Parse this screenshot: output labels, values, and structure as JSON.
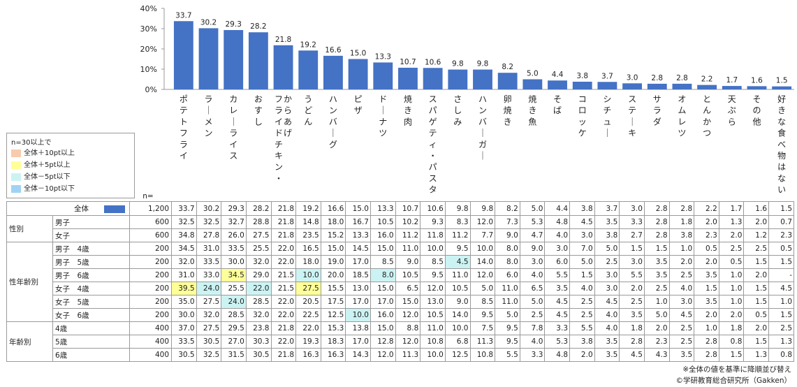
{
  "chart_data": {
    "type": "bar",
    "categories": [
      "ポテトフライ",
      "ラーメン",
      "カレーライス",
      "おすし",
      "フライドチキン・からあげ",
      "うどん",
      "ハンバーグ",
      "ピザ",
      "ドーナツ",
      "焼き肉",
      "スパゲティ・パスタ",
      "さしみ",
      "ハンバーガー",
      "卵焼き",
      "焼き魚",
      "そば",
      "コロッケ",
      "シチュー",
      "ステーキ",
      "サラダ",
      "オムレツ",
      "とんかつ",
      "天ぷら",
      "その他",
      "好きな食べ物はない"
    ],
    "category_lines": [
      [
        "ポテトフライ"
      ],
      [
        "ラーメン"
      ],
      [
        "カレーライス"
      ],
      [
        "おすし"
      ],
      [
        "フライドチキン・",
        "からあげ"
      ],
      [
        "うどん"
      ],
      [
        "ハンバーグ"
      ],
      [
        "ピザ"
      ],
      [
        "ドーナツ"
      ],
      [
        "焼き肉"
      ],
      [
        "スパゲティ・パスタ"
      ],
      [
        "さしみ"
      ],
      [
        "ハンバーガー"
      ],
      [
        "卵焼き"
      ],
      [
        "焼き魚"
      ],
      [
        "そば"
      ],
      [
        "コロッケ"
      ],
      [
        "シチュー"
      ],
      [
        "ステーキ"
      ],
      [
        "サラダ"
      ],
      [
        "オムレツ"
      ],
      [
        "とんかつ"
      ],
      [
        "天ぷら"
      ],
      [
        "その他"
      ],
      [
        "好きな食べ物はない"
      ]
    ],
    "values": [
      33.7,
      30.2,
      29.3,
      28.2,
      21.8,
      19.2,
      16.6,
      15.0,
      13.3,
      10.7,
      10.6,
      9.8,
      9.8,
      8.2,
      5.0,
      4.4,
      3.8,
      3.7,
      3.0,
      2.8,
      2.8,
      2.2,
      1.7,
      1.6,
      1.5
    ],
    "value_labels": [
      "33.7",
      "30.2",
      "29.3",
      "28.2",
      "21.8",
      "19.2",
      "16.6",
      "15.0",
      "13.3",
      "10.7",
      "10.6",
      "9.8",
      "9.8",
      "8.2",
      "5.0",
      "4.4",
      "3.8",
      "3.7",
      "3.0",
      "2.8",
      "2.8",
      "2.2",
      "1.7",
      "1.6",
      "1.5"
    ],
    "ylim": [
      0,
      40
    ],
    "y_ticks": [
      "0%",
      "10%",
      "20%",
      "30%",
      "40%"
    ],
    "bar_color": "#4472c4",
    "grid": false,
    "legend_position": "left"
  },
  "legend": {
    "title": "n=30以上で",
    "items": [
      {
        "label": "全体＋10pt以上",
        "color": "#f8cbad",
        "cls": "hl-p10"
      },
      {
        "label": "全体＋5pt以上",
        "color": "#ffff99",
        "cls": "hl-p5"
      },
      {
        "label": "全体－5pt以下",
        "color": "#ccf3f3",
        "cls": "hl-m5"
      },
      {
        "label": "全体－10pt以下",
        "color": "#9fd3f4",
        "cls": "hl-m10"
      }
    ]
  },
  "table": {
    "n_header": "n=",
    "rows": [
      {
        "group": "",
        "sub": "全体",
        "n": "1,200",
        "total": true,
        "values": [
          "33.7",
          "30.2",
          "29.3",
          "28.2",
          "21.8",
          "19.2",
          "16.6",
          "15.0",
          "13.3",
          "10.7",
          "10.6",
          "9.8",
          "9.8",
          "8.2",
          "5.0",
          "4.4",
          "3.8",
          "3.7",
          "3.0",
          "2.8",
          "2.8",
          "2.2",
          "1.7",
          "1.6",
          "1.5"
        ]
      },
      {
        "group": "性別",
        "span": 2,
        "sub": "男子",
        "n": "600",
        "values": [
          "32.5",
          "32.5",
          "32.7",
          "28.8",
          "21.8",
          "14.8",
          "18.0",
          "16.7",
          "10.5",
          "10.2",
          "9.3",
          "8.3",
          "12.0",
          "7.3",
          "5.3",
          "4.8",
          "4.5",
          "3.5",
          "3.3",
          "2.8",
          "1.8",
          "2.0",
          "1.3",
          "2.0",
          "0.7"
        ]
      },
      {
        "sub": "女子",
        "n": "600",
        "values": [
          "34.8",
          "27.8",
          "26.0",
          "27.5",
          "21.8",
          "23.5",
          "15.2",
          "13.3",
          "16.0",
          "11.2",
          "11.8",
          "11.2",
          "7.7",
          "9.0",
          "4.7",
          "4.0",
          "3.0",
          "3.8",
          "2.7",
          "2.8",
          "3.8",
          "2.3",
          "2.0",
          "1.2",
          "2.3"
        ]
      },
      {
        "group": "性年齢別",
        "span": 6,
        "sub": "男子　4歳",
        "n": "200",
        "values": [
          "34.5",
          "31.0",
          "33.5",
          "25.5",
          "22.0",
          "16.5",
          "15.0",
          "14.5",
          "15.0",
          "11.0",
          "10.0",
          "9.5",
          "10.0",
          "8.0",
          "9.0",
          "3.0",
          "7.0",
          "5.0",
          "1.5",
          "1.5",
          "1.0",
          "0.5",
          "2.5",
          "2.5",
          "0.5"
        ]
      },
      {
        "sub": "男子　5歳",
        "n": "200",
        "hl": {
          "11": "hl-m5"
        },
        "values": [
          "32.0",
          "33.5",
          "30.0",
          "32.0",
          "22.0",
          "18.0",
          "19.0",
          "17.0",
          "8.5",
          "9.0",
          "8.5",
          "4.5",
          "14.0",
          "8.0",
          "3.0",
          "6.0",
          "5.0",
          "2.5",
          "3.0",
          "3.5",
          "2.0",
          "2.0",
          "0.5",
          "1.5",
          "1.5"
        ]
      },
      {
        "sub": "男子　6歳",
        "n": "200",
        "hl": {
          "2": "hl-p5",
          "5": "hl-m5",
          "8": "hl-m5"
        },
        "values": [
          "31.0",
          "33.0",
          "34.5",
          "29.0",
          "21.5",
          "10.0",
          "20.0",
          "18.5",
          "8.0",
          "10.5",
          "9.5",
          "11.0",
          "12.0",
          "6.0",
          "4.0",
          "5.5",
          "1.5",
          "3.0",
          "5.5",
          "3.5",
          "2.5",
          "3.5",
          "1.0",
          "2.0",
          "-"
        ]
      },
      {
        "sub": "女子　4歳",
        "n": "200",
        "hl": {
          "0": "hl-p5",
          "1": "hl-m5",
          "3": "hl-m5",
          "5": "hl-p5"
        },
        "values": [
          "39.5",
          "24.0",
          "25.5",
          "22.0",
          "21.5",
          "27.5",
          "15.5",
          "13.0",
          "15.0",
          "6.5",
          "12.0",
          "10.5",
          "5.0",
          "11.0",
          "6.5",
          "3.5",
          "4.0",
          "3.0",
          "2.0",
          "2.5",
          "4.0",
          "1.5",
          "1.0",
          "1.5",
          "4.5"
        ]
      },
      {
        "sub": "女子　5歳",
        "n": "200",
        "hl": {
          "2": "hl-m5"
        },
        "values": [
          "35.0",
          "27.5",
          "24.0",
          "28.5",
          "22.0",
          "20.5",
          "17.5",
          "17.0",
          "17.0",
          "15.0",
          "13.0",
          "9.0",
          "8.5",
          "11.0",
          "5.0",
          "4.5",
          "2.5",
          "4.5",
          "2.5",
          "1.0",
          "3.0",
          "3.5",
          "1.0",
          "1.5",
          "1.0"
        ]
      },
      {
        "sub": "女子　6歳",
        "n": "200",
        "hl": {
          "7": "hl-m5"
        },
        "values": [
          "30.0",
          "32.0",
          "28.5",
          "32.0",
          "22.0",
          "22.5",
          "12.5",
          "10.0",
          "16.0",
          "12.0",
          "10.5",
          "14.0",
          "9.5",
          "5.0",
          "2.5",
          "4.5",
          "2.5",
          "4.0",
          "3.5",
          "5.0",
          "4.5",
          "2.0",
          "2.0",
          "0.5",
          "1.5"
        ]
      },
      {
        "group": "年齢別",
        "span": 3,
        "sub": "4歳",
        "n": "400",
        "values": [
          "37.0",
          "27.5",
          "29.5",
          "23.8",
          "21.8",
          "22.0",
          "15.3",
          "13.8",
          "15.0",
          "8.8",
          "11.0",
          "10.0",
          "7.5",
          "9.5",
          "7.8",
          "3.3",
          "5.5",
          "4.0",
          "1.8",
          "2.0",
          "2.5",
          "1.0",
          "1.8",
          "2.0",
          "2.5"
        ]
      },
      {
        "sub": "5歳",
        "n": "400",
        "values": [
          "33.5",
          "30.5",
          "27.0",
          "30.3",
          "22.0",
          "19.3",
          "18.3",
          "17.0",
          "12.8",
          "12.0",
          "10.8",
          "6.8",
          "11.3",
          "9.5",
          "4.0",
          "5.3",
          "3.8",
          "3.5",
          "2.8",
          "2.3",
          "2.5",
          "2.8",
          "0.8",
          "1.5",
          "1.3"
        ]
      },
      {
        "sub": "6歳",
        "n": "400",
        "values": [
          "30.5",
          "32.5",
          "31.5",
          "30.5",
          "21.8",
          "16.3",
          "16.3",
          "14.3",
          "12.0",
          "11.3",
          "10.0",
          "12.5",
          "10.8",
          "5.5",
          "3.3",
          "4.8",
          "2.0",
          "3.5",
          "4.5",
          "4.3",
          "3.5",
          "2.8",
          "1.5",
          "1.3",
          "0.8"
        ]
      }
    ]
  },
  "notes": {
    "sort_note": "※全体の値を基準に降順並び替え",
    "copyright": "©学研教育総合研究所（Gakken）"
  }
}
